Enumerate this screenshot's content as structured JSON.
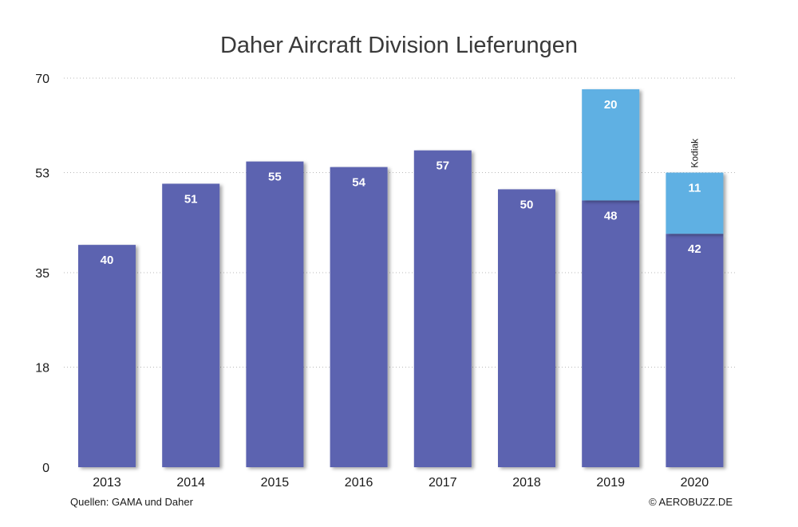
{
  "chart_data": {
    "type": "bar",
    "stacked": true,
    "title": "Daher Aircraft Division Lieferungen",
    "categories": [
      "2013",
      "2014",
      "2015",
      "2016",
      "2017",
      "2018",
      "2019",
      "2020"
    ],
    "series": [
      {
        "values": [
          40,
          51,
          55,
          54,
          57,
          50,
          48,
          42
        ],
        "color": "#5b63b0"
      },
      {
        "values": [
          0,
          0,
          0,
          0,
          0,
          0,
          20,
          11
        ],
        "color": "#5fb0e3"
      }
    ],
    "yticks": [
      "0",
      "18",
      "35",
      "53",
      "70"
    ],
    "ylim": [
      0,
      70
    ],
    "grid": true,
    "annotation": {
      "text": "Kodiak",
      "category": "2020"
    },
    "source": "Quellen: GAMA und Daher",
    "credit": "© AEROBUZZ.DE"
  }
}
